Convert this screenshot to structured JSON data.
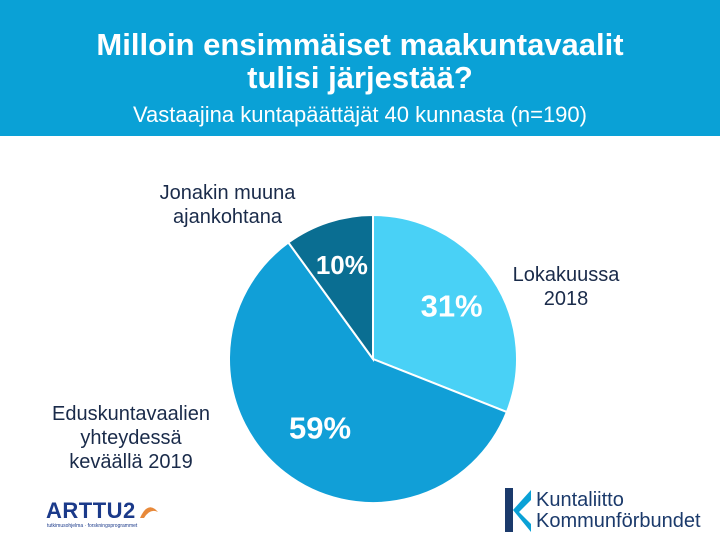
{
  "header": {
    "title_line1": "Milloin ensimmäiset maakuntavaalit",
    "title_line2": "tulisi järjestää?",
    "subtitle": "Vastaajina kuntapäättäjät 40 kunnasta (n=190)"
  },
  "chart_data": {
    "type": "pie",
    "title": "Milloin ensimmäiset maakuntavaalit tulisi järjestää?",
    "subtitle": "Vastaajina kuntapäättäjät 40 kunnasta (n=190)",
    "slices": [
      {
        "label": "Lokakuussa 2018",
        "value": 31,
        "value_label": "31%",
        "color": "#49d1f6"
      },
      {
        "label": "Eduskuntavaalien yhteydessä keväällä 2019",
        "value": 59,
        "value_label": "59%",
        "color": "#119fd7"
      },
      {
        "label": "Jonakin muuna ajankohtana",
        "value": 10,
        "value_label": "10%",
        "color": "#0a6e92"
      }
    ],
    "start": "12 o'clock",
    "direction": "clockwise",
    "legend": "none"
  },
  "labels": {
    "lokakuussa_line1": "Lokakuussa",
    "lokakuussa_line2": "2018",
    "eduskunta_line1": "Eduskuntavaalien",
    "eduskunta_line2": "yhteydessä",
    "eduskunta_line3": "keväällä 2019",
    "muuna_line1": "Jonakin muuna",
    "muuna_line2": "ajankohtana"
  },
  "logos": {
    "arttu_name": "ARTTU2",
    "arttu_tagline": "tutkimusohjelma · forskningsprogrammet",
    "kuntaliitto_line1": "Kuntaliitto",
    "kuntaliitto_line2": "Kommunförbundet",
    "arttu_color": "#1b3a8a",
    "kuntaliitto_color": "#1b3a6b"
  }
}
